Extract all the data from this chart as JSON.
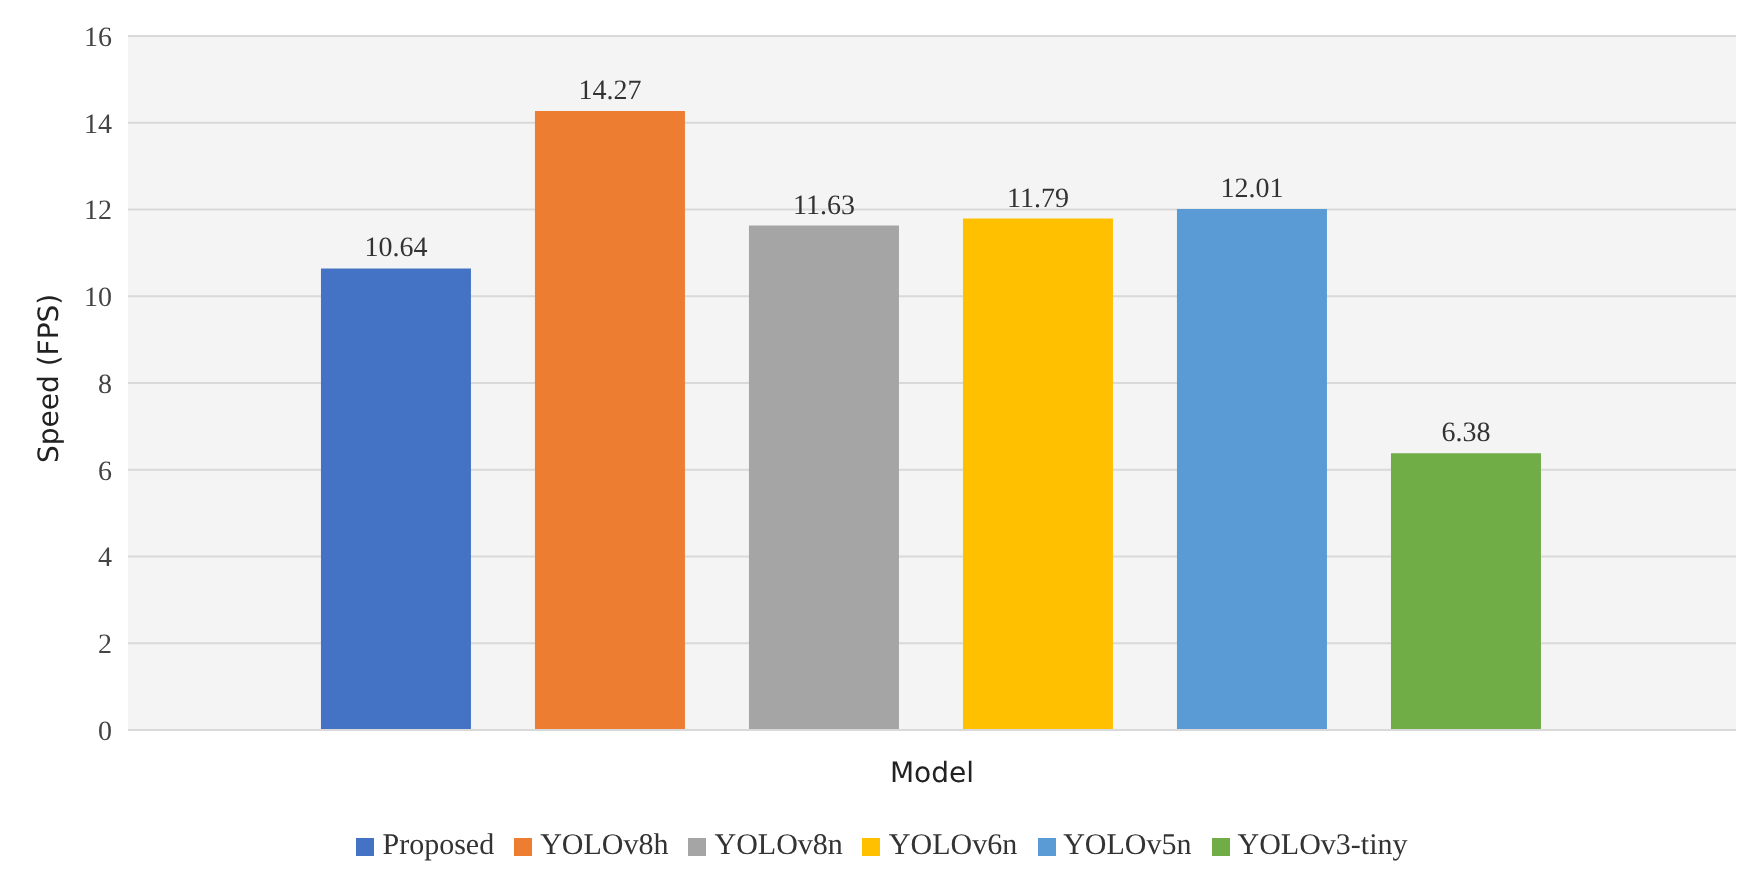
{
  "chart_data": {
    "type": "bar",
    "xlabel": "Model",
    "ylabel": "Speed (FPS)",
    "categories": [
      null
    ],
    "series": [
      {
        "name": "Proposed",
        "color": "#4472c4",
        "values": [
          10.64
        ]
      },
      {
        "name": "YOLOv8h",
        "color": "#ed7d31",
        "values": [
          14.27
        ]
      },
      {
        "name": "YOLOv8n",
        "color": "#a5a5a5",
        "values": [
          11.63
        ]
      },
      {
        "name": "YOLOv6n",
        "color": "#ffc000",
        "values": [
          11.79
        ]
      },
      {
        "name": "YOLOv5n",
        "color": "#5b9bd5",
        "values": [
          12.01
        ]
      },
      {
        "name": "YOLOv3-tiny",
        "color": "#70ad47",
        "values": [
          6.38
        ]
      }
    ],
    "ylim": [
      0,
      16
    ],
    "yticks": [
      0,
      2,
      4,
      6,
      8,
      10,
      12,
      14,
      16
    ],
    "grid": "y",
    "legend": "bottom",
    "data_labels": true
  }
}
